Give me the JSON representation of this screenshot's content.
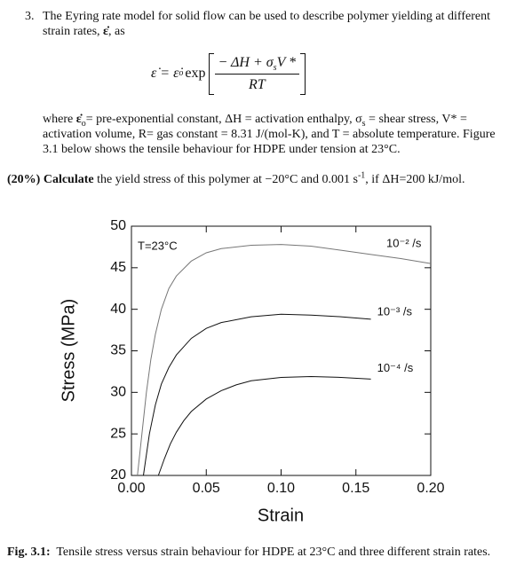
{
  "question_number": "3.",
  "intro": [
    "The Eyring rate model for solid flow can be used to describe polymer yielding at different strain rates, ",
    "ε̇",
    ", as"
  ],
  "equation": {
    "lhs": "ε̇ = ε̇",
    "lhs_sub": "o",
    "func": "exp",
    "num": [
      "− ΔH + σ",
      "s",
      "V *"
    ],
    "den": "RT"
  },
  "where": [
    "where ",
    "ε̇",
    "o",
    "= pre-exponential constant, ΔH = activation enthalpy, σ",
    "s",
    " = shear stress, V* = activation volume, R= gas constant = 8.31 J/(mol-K), and T = absolute temperature. Figure 3.1 below shows the tensile behaviour for HDPE under tension at 23°C."
  ],
  "question": [
    "(20%)",
    "Calculate",
    " the yield stress of this polymer at −20°C and 0.001 s",
    "-1",
    ", if ΔH=200 kJ/mol."
  ],
  "chart_data": {
    "type": "line",
    "annotation": "T=23°C",
    "xlabel": "Strain",
    "ylabel": "Stress (MPa)",
    "xlim": [
      0,
      0.2
    ],
    "ylim": [
      20,
      50
    ],
    "xticks": [
      {
        "value": 0,
        "label": "0.00"
      },
      {
        "value": 0.05,
        "label": "0.05"
      },
      {
        "value": 0.1,
        "label": "0.10"
      },
      {
        "value": 0.15,
        "label": "0.15"
      },
      {
        "value": 0.2,
        "label": "0.20"
      }
    ],
    "yticks": [
      20,
      25,
      30,
      35,
      40,
      45,
      50
    ],
    "grid": false,
    "series": [
      {
        "name": "10⁻² /s",
        "color": "#777777",
        "x": [
          0.004,
          0.007,
          0.01,
          0.013,
          0.016,
          0.02,
          0.025,
          0.03,
          0.04,
          0.05,
          0.06,
          0.08,
          0.1,
          0.12,
          0.14,
          0.16,
          0.18,
          0.2
        ],
        "values": [
          20,
          25,
          30,
          34,
          37,
          40,
          42.5,
          44,
          45.8,
          46.8,
          47.3,
          47.7,
          47.8,
          47.6,
          47.1,
          46.6,
          46.1,
          45.5
        ]
      },
      {
        "name": "10⁻³ /s",
        "color": "#111111",
        "x": [
          0.008,
          0.012,
          0.016,
          0.02,
          0.025,
          0.03,
          0.04,
          0.05,
          0.06,
          0.08,
          0.1,
          0.12,
          0.14,
          0.16
        ],
        "values": [
          20,
          25,
          28.5,
          31,
          33,
          34.5,
          36.5,
          37.7,
          38.4,
          39.1,
          39.4,
          39.3,
          39.1,
          38.8
        ]
      },
      {
        "name": "10⁻⁴ /s",
        "color": "#111111",
        "x": [
          0.018,
          0.022,
          0.026,
          0.03,
          0.035,
          0.04,
          0.05,
          0.06,
          0.07,
          0.08,
          0.1,
          0.12,
          0.14,
          0.16
        ],
        "values": [
          20,
          22,
          23.8,
          25.2,
          26.6,
          27.7,
          29.2,
          30.2,
          30.9,
          31.4,
          31.8,
          31.9,
          31.8,
          31.6
        ]
      }
    ]
  },
  "caption": {
    "label": "Fig. 3.1:",
    "text": "Tensile stress versus strain behaviour for HDPE at 23°C and three different strain rates."
  }
}
